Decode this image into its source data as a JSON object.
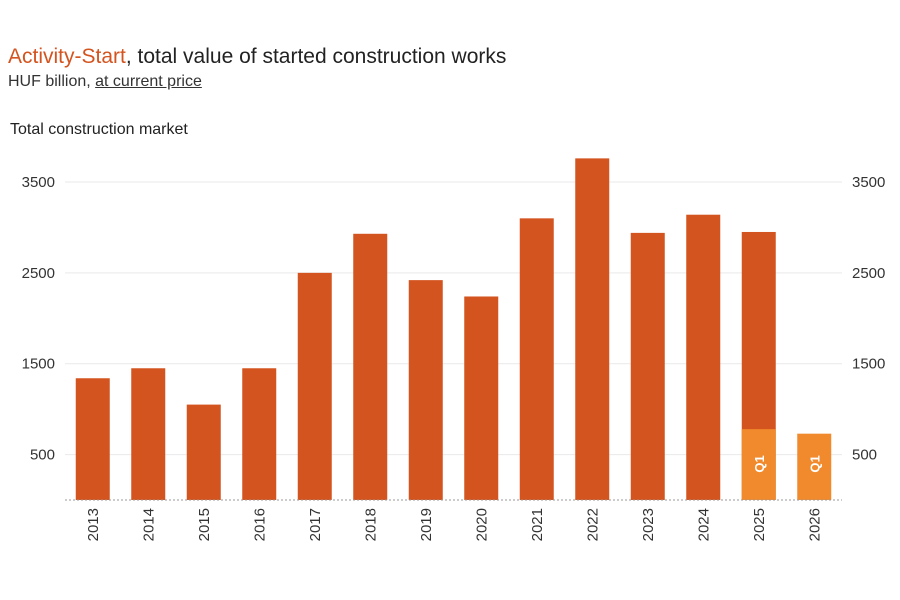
{
  "header": {
    "title_accent": "Activity-Start",
    "title_rest": ", total value of started construction works",
    "subtitle_plain": "HUF billion, ",
    "subtitle_link": "at current price",
    "panel_title": "Total construction market"
  },
  "colors": {
    "bar": "#d4541f",
    "bar_q1": "#f08a2c",
    "grid": "#e9e9e9",
    "baseline": "#999999"
  },
  "chart_data": {
    "type": "bar",
    "title": "Activity-Start, total value of started construction works",
    "subtitle": "HUF billion, at current price",
    "panel_title": "Total construction market",
    "categories": [
      "2013",
      "2014",
      "2015",
      "2016",
      "2017",
      "2018",
      "2019",
      "2020",
      "2021",
      "2022",
      "2023",
      "2024",
      "2025",
      "2026"
    ],
    "series": [
      {
        "values": [
          1340,
          1450,
          1050,
          1450,
          2500,
          2930,
          2420,
          2240,
          3100,
          3760,
          2940,
          3140,
          2950,
          null
        ]
      },
      {
        "name": "Q1",
        "values": [
          null,
          null,
          null,
          null,
          null,
          null,
          null,
          null,
          null,
          null,
          null,
          null,
          780,
          730
        ]
      }
    ],
    "bar_labels": [
      "",
      "",
      "",
      "",
      "",
      "",
      "",
      "",
      "",
      "",
      "",
      "",
      "Q1",
      "Q1"
    ],
    "yticks": [
      500,
      1500,
      2500,
      3500
    ],
    "ylim": [
      0,
      3800
    ],
    "axes": "left-and-right",
    "grid": true
  }
}
